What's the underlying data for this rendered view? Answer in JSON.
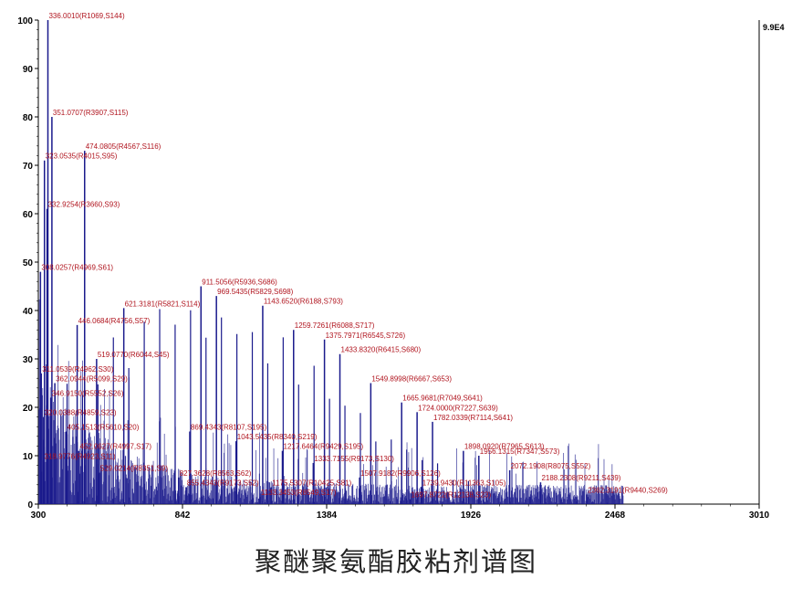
{
  "chart_data": {
    "type": "bar",
    "x_ticks": [
      "300",
      "842",
      "1384",
      "1926",
      "2468",
      "3010"
    ],
    "y_ticks": [
      "0",
      "10",
      "20",
      "30",
      "40",
      "50",
      "60",
      "70",
      "80",
      "90",
      "100"
    ],
    "xlim": [
      300,
      3010
    ],
    "ylim": [
      0,
      100
    ],
    "right_label": "9.9E4",
    "grid": false,
    "colors": {
      "peak": "#1a1a8c",
      "label": "#b0141e",
      "axis": "#000000"
    },
    "annotations": [
      {
        "x": 336.001,
        "y": 100,
        "text": "336.0010(R1069,S144)"
      },
      {
        "x": 351.0707,
        "y": 80,
        "text": "351.0707(R3907,S115)"
      },
      {
        "x": 474.0805,
        "y": 73,
        "text": "474.0805(R4567,S116)"
      },
      {
        "x": 323.0535,
        "y": 71,
        "text": "323.0535(R4015,S95)"
      },
      {
        "x": 332.9254,
        "y": 61,
        "text": "332.9254(R3660,S93)"
      },
      {
        "x": 308.0257,
        "y": 48,
        "text": "308.0257(R4969,S61)"
      },
      {
        "x": 911.5056,
        "y": 45,
        "text": "911.5056(R5936,S686)"
      },
      {
        "x": 969.5435,
        "y": 43,
        "text": "969.5435(R5829,S698)"
      },
      {
        "x": 621.3181,
        "y": 40.5,
        "text": "621.3181(R5821,S114)"
      },
      {
        "x": 1143.652,
        "y": 41,
        "text": "1143.6520(R6188,S793)"
      },
      {
        "x": 446.0684,
        "y": 37,
        "text": "446.0684(R4756,S57)"
      },
      {
        "x": 1259.7261,
        "y": 36,
        "text": "1259.7261(R6088,S717)"
      },
      {
        "x": 1375.7971,
        "y": 34,
        "text": "1375.7971(R6545,S726)"
      },
      {
        "x": 519.077,
        "y": 30,
        "text": "519.0770(R6044,S45)"
      },
      {
        "x": 1433.832,
        "y": 31,
        "text": "1433.8320(R6415,S680)"
      },
      {
        "x": 311.0539,
        "y": 27,
        "text": "311.0539(R4962,S30)"
      },
      {
        "x": 362.0944,
        "y": 25,
        "text": "362.0944(R5099,S29)"
      },
      {
        "x": 346.915,
        "y": 22,
        "text": "346.9150(R5552,S26)"
      },
      {
        "x": 1549.8998,
        "y": 25,
        "text": "1549.8998(R6667,S653)"
      },
      {
        "x": 1665.9681,
        "y": 21,
        "text": "1665.9681(R7049,S641)"
      },
      {
        "x": 320.0388,
        "y": 18,
        "text": "320.0388(R4859,S23)"
      },
      {
        "x": 1724.0,
        "y": 19,
        "text": "1724.0000(R7227,S639)"
      },
      {
        "x": 1782.0339,
        "y": 17,
        "text": "1782.0339(R7114,S641)"
      },
      {
        "x": 405.1513,
        "y": 15,
        "text": "405.1513(R5610,S20)"
      },
      {
        "x": 869.4343,
        "y": 15,
        "text": "869.4343(R8107,S195)"
      },
      {
        "x": 1043.5435,
        "y": 13,
        "text": "1043.5435(R8340,S219)"
      },
      {
        "x": 452.0627,
        "y": 11,
        "text": "452.0627(R4997,S17)"
      },
      {
        "x": 1217.6464,
        "y": 11,
        "text": "1217.6464(R9429,S195)"
      },
      {
        "x": 1898.092,
        "y": 11,
        "text": "1898.0920(R7965,S613)"
      },
      {
        "x": 318.9776,
        "y": 9,
        "text": "318.9776(R4923,S11)"
      },
      {
        "x": 1956.1315,
        "y": 10,
        "text": "1956.1315(R7347,S573)"
      },
      {
        "x": 1333.7155,
        "y": 8.5,
        "text": "1333.7155(R9173,S130)"
      },
      {
        "x": 529.0214,
        "y": 6.5,
        "text": "529.0214(R8351,S9)"
      },
      {
        "x": 1507.9182,
        "y": 5.5,
        "text": "1507.9182(R9906,S126)"
      },
      {
        "x": 2072.1908,
        "y": 7,
        "text": "2072.1908(R8075,S552)"
      },
      {
        "x": 827.3628,
        "y": 5.5,
        "text": "827.3628(R8563,S62)"
      },
      {
        "x": 855.4343,
        "y": 3.5,
        "text": "855.4343(R9173,S52)"
      },
      {
        "x": 1175.5307,
        "y": 3.5,
        "text": "1175.5307(R10425,S81)"
      },
      {
        "x": 1739.943,
        "y": 3.5,
        "text": "1739.9430(R11363,S105)"
      },
      {
        "x": 2188.2308,
        "y": 4.5,
        "text": "2188.2308(R9211,S439)"
      },
      {
        "x": 1133.3453,
        "y": 1.5,
        "text": "1133.3453(R8549,S17)"
      },
      {
        "x": 1697.8722,
        "y": 1,
        "text": "1697.8722(R12138,S23)"
      },
      {
        "x": 2362.3191,
        "y": 2,
        "text": "2362.3191(R9440,S269)"
      }
    ]
  },
  "caption": "聚醚聚氨酯胶粘剂谱图"
}
